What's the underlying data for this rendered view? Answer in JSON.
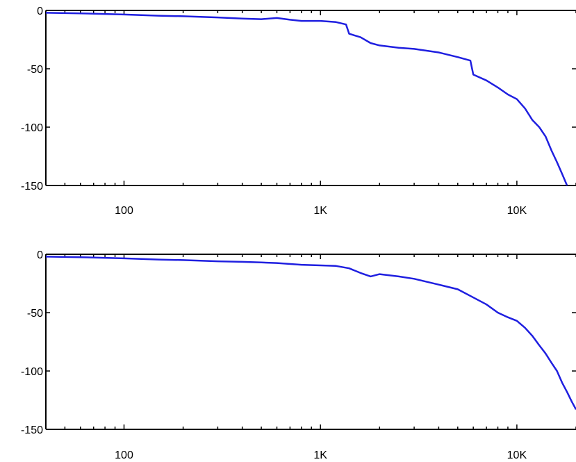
{
  "chart_data": [
    {
      "type": "line",
      "title": "",
      "xlabel": "",
      "ylabel": "",
      "x_scale": "log",
      "xlim": [
        40,
        20000
      ],
      "ylim": [
        -150,
        0
      ],
      "grid": false,
      "x_ticks": [
        {
          "value": 100,
          "label": "100"
        },
        {
          "value": 1000,
          "label": "1K"
        },
        {
          "value": 10000,
          "label": "10K"
        }
      ],
      "y_ticks": [
        {
          "value": 0,
          "label": "0"
        },
        {
          "value": -50,
          "label": "-50"
        },
        {
          "value": -100,
          "label": "-100"
        },
        {
          "value": -150,
          "label": "-150"
        }
      ],
      "series": [
        {
          "color": "#1f1fe0",
          "points": [
            [
              40,
              -2
            ],
            [
              60,
              -2.5
            ],
            [
              100,
              -3.5
            ],
            [
              150,
              -4.5
            ],
            [
              200,
              -5
            ],
            [
              300,
              -6
            ],
            [
              400,
              -7
            ],
            [
              500,
              -7.5
            ],
            [
              600,
              -6.5
            ],
            [
              700,
              -8
            ],
            [
              800,
              -9
            ],
            [
              1000,
              -9
            ],
            [
              1200,
              -10
            ],
            [
              1350,
              -12
            ],
            [
              1400,
              -20
            ],
            [
              1600,
              -23
            ],
            [
              1800,
              -28
            ],
            [
              2000,
              -30
            ],
            [
              2500,
              -32
            ],
            [
              3000,
              -33
            ],
            [
              4000,
              -36
            ],
            [
              5000,
              -40
            ],
            [
              5800,
              -43
            ],
            [
              6000,
              -55
            ],
            [
              7000,
              -60
            ],
            [
              8000,
              -66
            ],
            [
              9000,
              -72
            ],
            [
              10000,
              -76
            ],
            [
              11000,
              -84
            ],
            [
              12000,
              -94
            ],
            [
              13000,
              -100
            ],
            [
              14000,
              -108
            ],
            [
              15000,
              -120
            ],
            [
              16000,
              -130
            ],
            [
              17000,
              -140
            ],
            [
              18000,
              -150
            ]
          ]
        }
      ]
    },
    {
      "type": "line",
      "title": "",
      "xlabel": "",
      "ylabel": "",
      "x_scale": "log",
      "xlim": [
        40,
        20000
      ],
      "ylim": [
        -150,
        0
      ],
      "grid": false,
      "x_ticks": [
        {
          "value": 100,
          "label": "100"
        },
        {
          "value": 1000,
          "label": "1K"
        },
        {
          "value": 10000,
          "label": "10K"
        }
      ],
      "y_ticks": [
        {
          "value": 0,
          "label": "0"
        },
        {
          "value": -50,
          "label": "-50"
        },
        {
          "value": -100,
          "label": "-100"
        },
        {
          "value": -150,
          "label": "-150"
        }
      ],
      "series": [
        {
          "color": "#1f1fe0",
          "points": [
            [
              40,
              -2
            ],
            [
              60,
              -2.5
            ],
            [
              100,
              -3.5
            ],
            [
              150,
              -4.5
            ],
            [
              200,
              -5
            ],
            [
              300,
              -6
            ],
            [
              400,
              -6.5
            ],
            [
              500,
              -7
            ],
            [
              600,
              -7.5
            ],
            [
              800,
              -9
            ],
            [
              1000,
              -9.5
            ],
            [
              1200,
              -10
            ],
            [
              1400,
              -12
            ],
            [
              1600,
              -16
            ],
            [
              1800,
              -19
            ],
            [
              2000,
              -17
            ],
            [
              2500,
              -19
            ],
            [
              3000,
              -21
            ],
            [
              4000,
              -26
            ],
            [
              5000,
              -30
            ],
            [
              6000,
              -37
            ],
            [
              7000,
              -43
            ],
            [
              8000,
              -50
            ],
            [
              9000,
              -54
            ],
            [
              10000,
              -57
            ],
            [
              11000,
              -63
            ],
            [
              12000,
              -70
            ],
            [
              13000,
              -78
            ],
            [
              14000,
              -85
            ],
            [
              15000,
              -93
            ],
            [
              16000,
              -100
            ],
            [
              17000,
              -110
            ],
            [
              18000,
              -118
            ],
            [
              19000,
              -126
            ],
            [
              20000,
              -133
            ]
          ]
        }
      ]
    }
  ]
}
